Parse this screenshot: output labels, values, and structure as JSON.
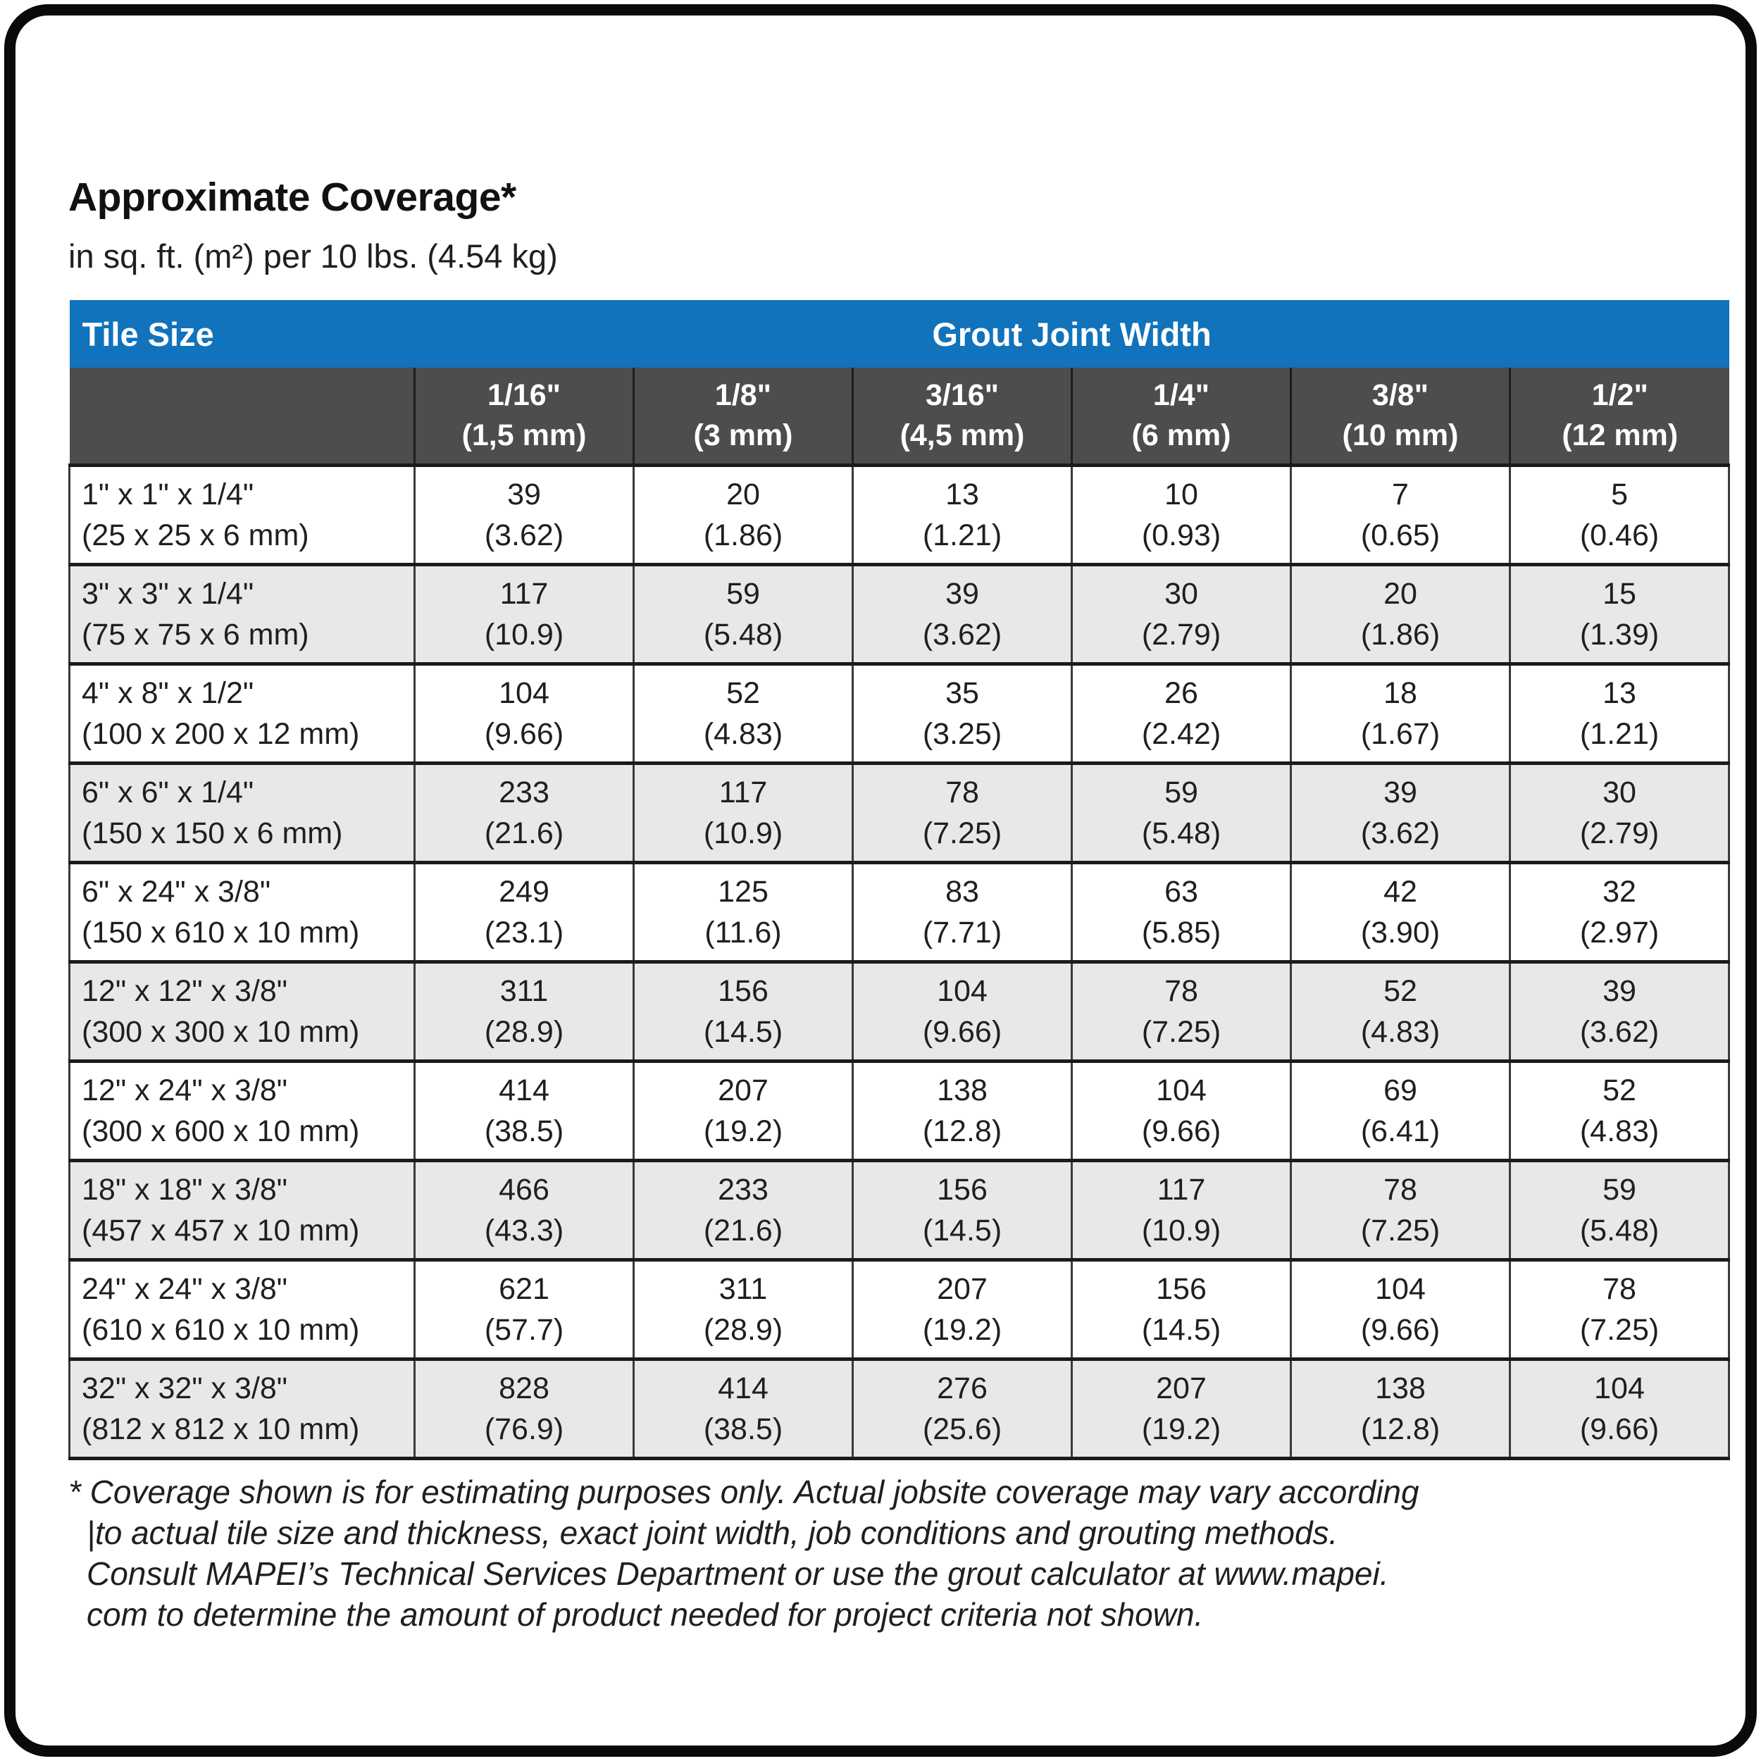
{
  "page": {
    "title": "Approximate Coverage*",
    "subtitle": "in sq. ft. (m²) per 10 lbs. (4.54 kg)"
  },
  "colors": {
    "header_blue": "#1173bb",
    "subheader_gray": "#4d4d4f",
    "row_alt_gray": "#e8e8e9",
    "grid_line": "#3a3a3a",
    "frame_black": "#0a0a0a"
  },
  "table": {
    "header": {
      "tile_size": "Tile Size",
      "grout_joint_width": "Grout Joint Width"
    },
    "columns": [
      {
        "inch": "1/16\"",
        "mm": "(1,5 mm)"
      },
      {
        "inch": "1/8\"",
        "mm": "(3 mm)"
      },
      {
        "inch": "3/16\"",
        "mm": "(4,5 mm)"
      },
      {
        "inch": "1/4\"",
        "mm": "(6 mm)"
      },
      {
        "inch": "3/8\"",
        "mm": "(10 mm)"
      },
      {
        "inch": "1/2\"",
        "mm": "(12 mm)"
      }
    ],
    "rows": [
      {
        "size_in": "1\" x 1\" x 1/4\"",
        "size_mm": "(25 x 25 x 6 mm)",
        "values": [
          {
            "sqft": "39",
            "m2": "(3.62)"
          },
          {
            "sqft": "20",
            "m2": "(1.86)"
          },
          {
            "sqft": "13",
            "m2": "(1.21)"
          },
          {
            "sqft": "10",
            "m2": "(0.93)"
          },
          {
            "sqft": "7",
            "m2": "(0.65)"
          },
          {
            "sqft": "5",
            "m2": "(0.46)"
          }
        ]
      },
      {
        "size_in": "3\" x 3\" x 1/4\"",
        "size_mm": "(75 x 75 x 6 mm)",
        "values": [
          {
            "sqft": "117",
            "m2": "(10.9)"
          },
          {
            "sqft": "59",
            "m2": "(5.48)"
          },
          {
            "sqft": "39",
            "m2": "(3.62)"
          },
          {
            "sqft": "30",
            "m2": "(2.79)"
          },
          {
            "sqft": "20",
            "m2": "(1.86)"
          },
          {
            "sqft": "15",
            "m2": "(1.39)"
          }
        ]
      },
      {
        "size_in": "4\" x 8\" x 1/2\"",
        "size_mm": "(100 x 200 x 12 mm)",
        "values": [
          {
            "sqft": "104",
            "m2": "(9.66)"
          },
          {
            "sqft": "52",
            "m2": "(4.83)"
          },
          {
            "sqft": "35",
            "m2": "(3.25)"
          },
          {
            "sqft": "26",
            "m2": "(2.42)"
          },
          {
            "sqft": "18",
            "m2": "(1.67)"
          },
          {
            "sqft": "13",
            "m2": "(1.21)"
          }
        ]
      },
      {
        "size_in": "6\" x 6\" x 1/4\"",
        "size_mm": "(150 x 150 x 6 mm)",
        "values": [
          {
            "sqft": "233",
            "m2": "(21.6)"
          },
          {
            "sqft": "117",
            "m2": "(10.9)"
          },
          {
            "sqft": "78",
            "m2": "(7.25)"
          },
          {
            "sqft": "59",
            "m2": "(5.48)"
          },
          {
            "sqft": "39",
            "m2": "(3.62)"
          },
          {
            "sqft": "30",
            "m2": "(2.79)"
          }
        ]
      },
      {
        "size_in": "6\" x 24\" x 3/8\"",
        "size_mm": "(150 x 610 x 10 mm)",
        "values": [
          {
            "sqft": "249",
            "m2": "(23.1)"
          },
          {
            "sqft": "125",
            "m2": "(11.6)"
          },
          {
            "sqft": "83",
            "m2": "(7.71)"
          },
          {
            "sqft": "63",
            "m2": "(5.85)"
          },
          {
            "sqft": "42",
            "m2": "(3.90)"
          },
          {
            "sqft": "32",
            "m2": "(2.97)"
          }
        ]
      },
      {
        "size_in": "12\" x 12\" x 3/8\"",
        "size_mm": "(300 x 300 x 10 mm)",
        "values": [
          {
            "sqft": "311",
            "m2": "(28.9)"
          },
          {
            "sqft": "156",
            "m2": "(14.5)"
          },
          {
            "sqft": "104",
            "m2": "(9.66)"
          },
          {
            "sqft": "78",
            "m2": "(7.25)"
          },
          {
            "sqft": "52",
            "m2": "(4.83)"
          },
          {
            "sqft": "39",
            "m2": "(3.62)"
          }
        ]
      },
      {
        "size_in": "12\" x 24\" x 3/8\"",
        "size_mm": "(300 x 600 x 10 mm)",
        "values": [
          {
            "sqft": "414",
            "m2": "(38.5)"
          },
          {
            "sqft": "207",
            "m2": "(19.2)"
          },
          {
            "sqft": "138",
            "m2": "(12.8)"
          },
          {
            "sqft": "104",
            "m2": "(9.66)"
          },
          {
            "sqft": "69",
            "m2": "(6.41)"
          },
          {
            "sqft": "52",
            "m2": "(4.83)"
          }
        ]
      },
      {
        "size_in": "18\" x 18\" x 3/8\"",
        "size_mm": "(457 x 457 x 10 mm)",
        "values": [
          {
            "sqft": "466",
            "m2": "(43.3)"
          },
          {
            "sqft": "233",
            "m2": "(21.6)"
          },
          {
            "sqft": "156",
            "m2": "(14.5)"
          },
          {
            "sqft": "117",
            "m2": "(10.9)"
          },
          {
            "sqft": "78",
            "m2": "(7.25)"
          },
          {
            "sqft": "59",
            "m2": "(5.48)"
          }
        ]
      },
      {
        "size_in": "24\" x 24\" x 3/8\"",
        "size_mm": "(610 x 610 x 10 mm)",
        "values": [
          {
            "sqft": "621",
            "m2": "(57.7)"
          },
          {
            "sqft": "311",
            "m2": "(28.9)"
          },
          {
            "sqft": "207",
            "m2": "(19.2)"
          },
          {
            "sqft": "156",
            "m2": "(14.5)"
          },
          {
            "sqft": "104",
            "m2": "(9.66)"
          },
          {
            "sqft": "78",
            "m2": "(7.25)"
          }
        ]
      },
      {
        "size_in": "32\" x 32\" x 3/8\"",
        "size_mm": "(812 x 812 x 10 mm)",
        "values": [
          {
            "sqft": "828",
            "m2": "(76.9)"
          },
          {
            "sqft": "414",
            "m2": "(38.5)"
          },
          {
            "sqft": "276",
            "m2": "(25.6)"
          },
          {
            "sqft": "207",
            "m2": "(19.2)"
          },
          {
            "sqft": "138",
            "m2": "(12.8)"
          },
          {
            "sqft": "104",
            "m2": "(9.66)"
          }
        ]
      }
    ]
  },
  "footnote": {
    "lines": [
      "* Coverage shown is for estimating purposes only. Actual jobsite coverage may vary according",
      "|to actual tile size and thickness, exact joint width, job conditions and grouting methods.",
      "Consult MAPEI’s Technical Services Department or use the grout calculator at www.mapei.",
      "com to determine the amount of product needed for project criteria not shown."
    ]
  }
}
